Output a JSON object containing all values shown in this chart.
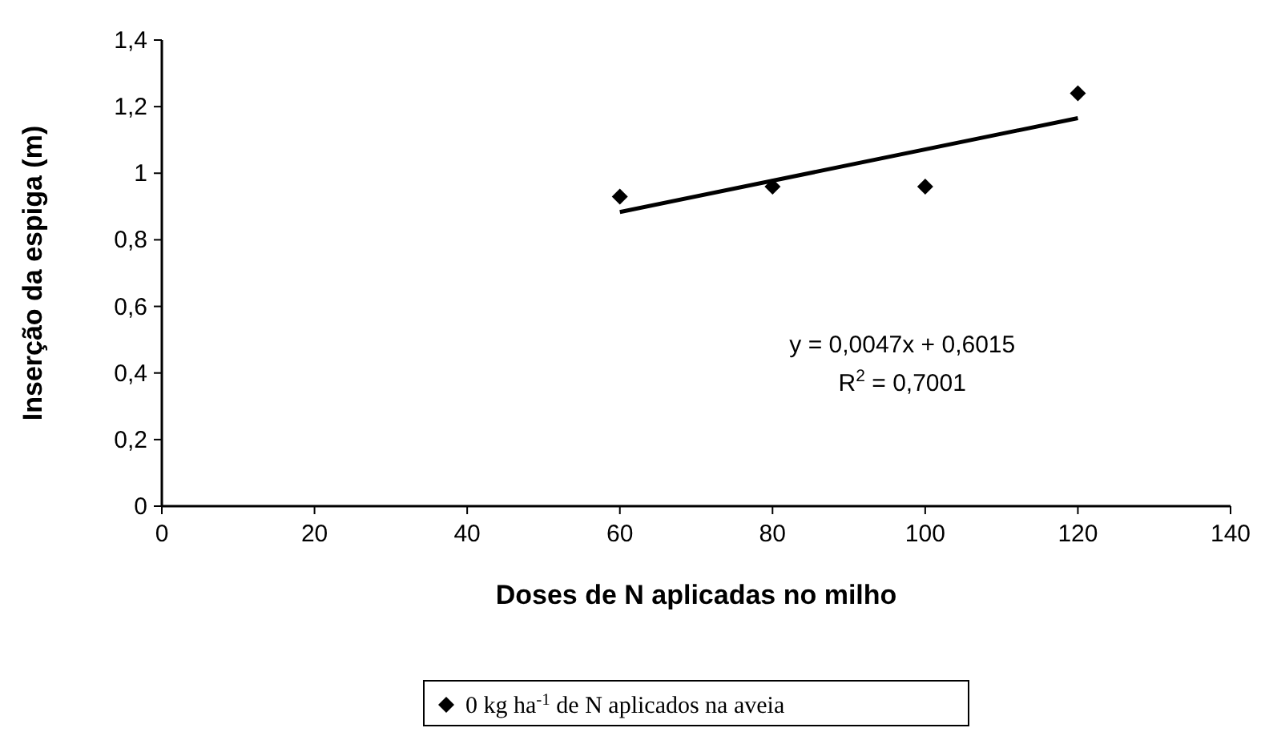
{
  "chart_data": {
    "type": "scatter",
    "xlabel": "Doses de N aplicadas no milho",
    "ylabel": "Inserção da espiga (m)",
    "x": [
      60,
      80,
      100,
      120
    ],
    "series": [
      {
        "name": "0 kg ha$^{-1}$ de N aplicados na aveia",
        "color": "#000000",
        "values": [
          0.93,
          0.96,
          0.96,
          1.24
        ],
        "marker": "diamond"
      },
      {
        "type": "line",
        "color": "#000000",
        "x": [
          60,
          120
        ],
        "values": [
          0.8835,
          1.1655
        ],
        "marker": "none"
      }
    ],
    "annotations": [
      "y = 0,0047x + 0,6015",
      "R$^{2}$ = 0,7001"
    ],
    "xlim": [
      0,
      140
    ],
    "xticks": [
      0,
      20,
      40,
      60,
      80,
      100,
      120,
      140
    ],
    "ylim": [
      0,
      1.4
    ],
    "yticks": [
      0,
      {
        "value": 0.2,
        "label": "0,2"
      },
      {
        "value": 0.4,
        "label": "0,4"
      },
      {
        "value": 0.6,
        "label": "0,6"
      },
      {
        "value": 0.8,
        "label": "0,8"
      },
      1,
      {
        "value": 1.2,
        "label": "1,2"
      },
      {
        "value": 1.4,
        "label": "1,4"
      }
    ],
    "grid": false,
    "legend": "bottom"
  }
}
